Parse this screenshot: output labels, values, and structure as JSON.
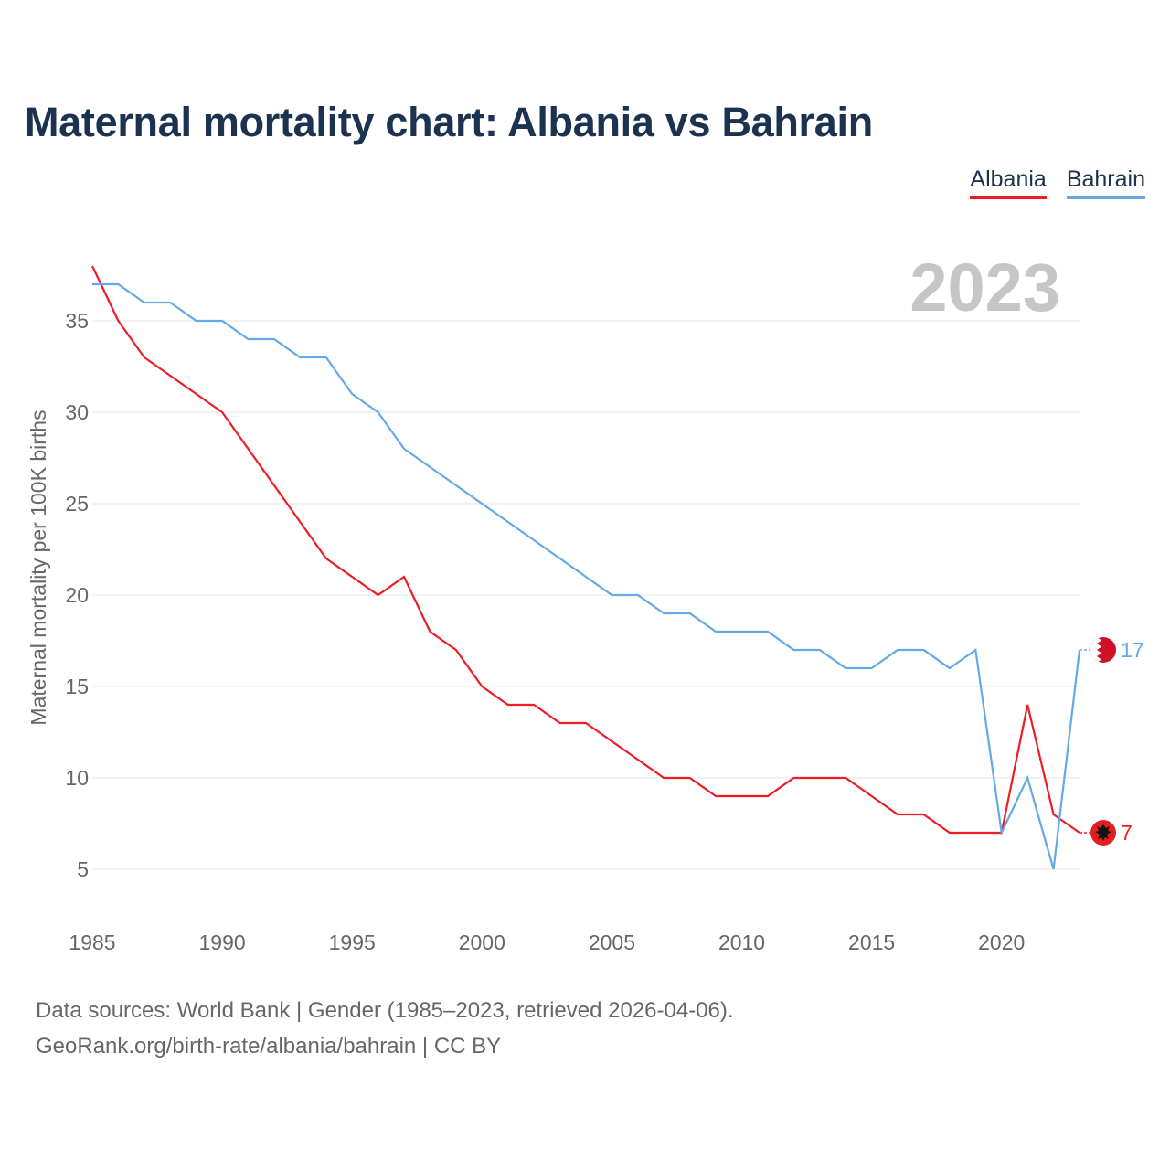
{
  "title": "Maternal mortality chart: Albania vs Bahrain",
  "footer": {
    "line1": "Data sources: World Bank | Gender (1985–2023, retrieved 2026-04-06).",
    "line2": "GeoRank.org/birth-rate/albania/bahrain | CC BY"
  },
  "chart_data": {
    "type": "line",
    "title": "Maternal mortality chart: Albania vs Bahrain",
    "ylabel": "Maternal mortality per 100K births",
    "xlabel": "",
    "year_label": "2023",
    "xlim": [
      1985,
      2023
    ],
    "ylim": [
      2,
      39
    ],
    "y_ticks": [
      5,
      10,
      15,
      20,
      25,
      30,
      35
    ],
    "x_ticks": [
      1985,
      1990,
      1995,
      2000,
      2005,
      2010,
      2015,
      2020
    ],
    "grid": true,
    "legend_position": "top-right",
    "x": [
      1985,
      1986,
      1987,
      1988,
      1989,
      1990,
      1991,
      1992,
      1993,
      1994,
      1995,
      1996,
      1997,
      1998,
      1999,
      2000,
      2001,
      2002,
      2003,
      2004,
      2005,
      2006,
      2007,
      2008,
      2009,
      2010,
      2011,
      2012,
      2013,
      2014,
      2015,
      2016,
      2017,
      2018,
      2019,
      2020,
      2021,
      2022,
      2023
    ],
    "series": [
      {
        "name": "Albania",
        "color": "#ee1c25",
        "end_value": "7",
        "values": [
          38,
          35,
          33,
          32,
          31,
          30,
          28,
          26,
          24,
          22,
          21,
          20,
          21,
          18,
          17,
          15,
          14,
          14,
          13,
          13,
          12,
          11,
          10,
          10,
          9,
          9,
          9,
          10,
          10,
          10,
          9,
          8,
          8,
          7,
          7,
          7,
          14,
          8,
          7
        ]
      },
      {
        "name": "Bahrain",
        "color": "#64a8e6",
        "end_value": "17",
        "values": [
          37,
          37,
          36,
          36,
          35,
          35,
          34,
          34,
          33,
          33,
          31,
          30,
          28,
          27,
          26,
          25,
          24,
          23,
          22,
          21,
          20,
          20,
          19,
          19,
          18,
          18,
          18,
          17,
          17,
          16,
          16,
          17,
          17,
          16,
          17,
          7,
          10,
          5,
          17
        ]
      }
    ]
  }
}
